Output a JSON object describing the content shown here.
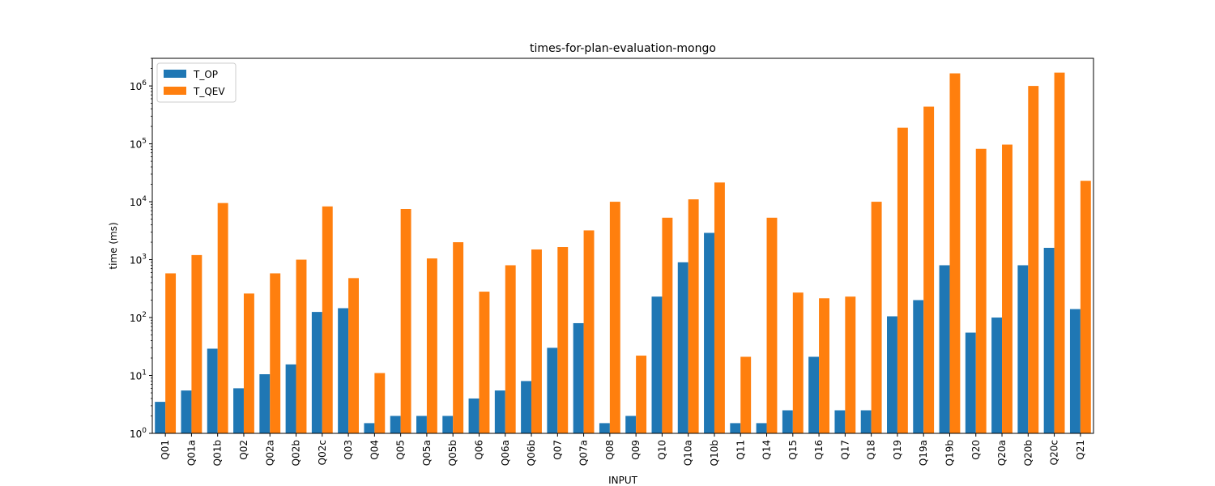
{
  "chart_data": {
    "type": "bar",
    "title": "times-for-plan-evaluation-mongo",
    "xlabel": "INPUT",
    "ylabel": "time (ms)",
    "yscale": "log",
    "ylim": [
      1,
      3000000
    ],
    "yticks": [
      {
        "value": 1,
        "base": "10",
        "exp": "0"
      },
      {
        "value": 10,
        "base": "10",
        "exp": "1"
      },
      {
        "value": 100,
        "base": "10",
        "exp": "2"
      },
      {
        "value": 1000,
        "base": "10",
        "exp": "3"
      },
      {
        "value": 10000,
        "base": "10",
        "exp": "4"
      },
      {
        "value": 100000,
        "base": "10",
        "exp": "5"
      },
      {
        "value": 1000000,
        "base": "10",
        "exp": "6"
      }
    ],
    "grid": false,
    "legend_position": "top-left",
    "categories": [
      "Q01",
      "Q01a",
      "Q01b",
      "Q02",
      "Q02a",
      "Q02b",
      "Q02c",
      "Q03",
      "Q04",
      "Q05",
      "Q05a",
      "Q05b",
      "Q06",
      "Q06a",
      "Q06b",
      "Q07",
      "Q07a",
      "Q08",
      "Q09",
      "Q10",
      "Q10a",
      "Q10b",
      "Q11",
      "Q14",
      "Q15",
      "Q16",
      "Q17",
      "Q18",
      "Q19",
      "Q19a",
      "Q19b",
      "Q20",
      "Q20a",
      "Q20b",
      "Q20c",
      "Q21"
    ],
    "series": [
      {
        "name": "T_OP",
        "color": "#1f77b4",
        "values": [
          3.5,
          5.5,
          29,
          6,
          10.5,
          15.5,
          125,
          145,
          1.5,
          2,
          2,
          2,
          4,
          5.5,
          8,
          30,
          80,
          1.5,
          2,
          230,
          900,
          2900,
          1.5,
          1.5,
          2.5,
          21,
          2.5,
          2.5,
          105,
          200,
          800,
          55,
          100,
          800,
          1600,
          140
        ]
      },
      {
        "name": "T_QEV",
        "color": "#ff7f0e",
        "values": [
          580,
          1200,
          9500,
          260,
          580,
          1000,
          8300,
          480,
          11,
          7500,
          1050,
          2000,
          280,
          800,
          1500,
          1650,
          3200,
          10000,
          22,
          5300,
          11000,
          21500,
          21,
          5300,
          270,
          215,
          230,
          10000,
          190000,
          440000,
          1650000,
          82000,
          97000,
          1000000,
          1700000,
          23000
        ]
      }
    ]
  }
}
